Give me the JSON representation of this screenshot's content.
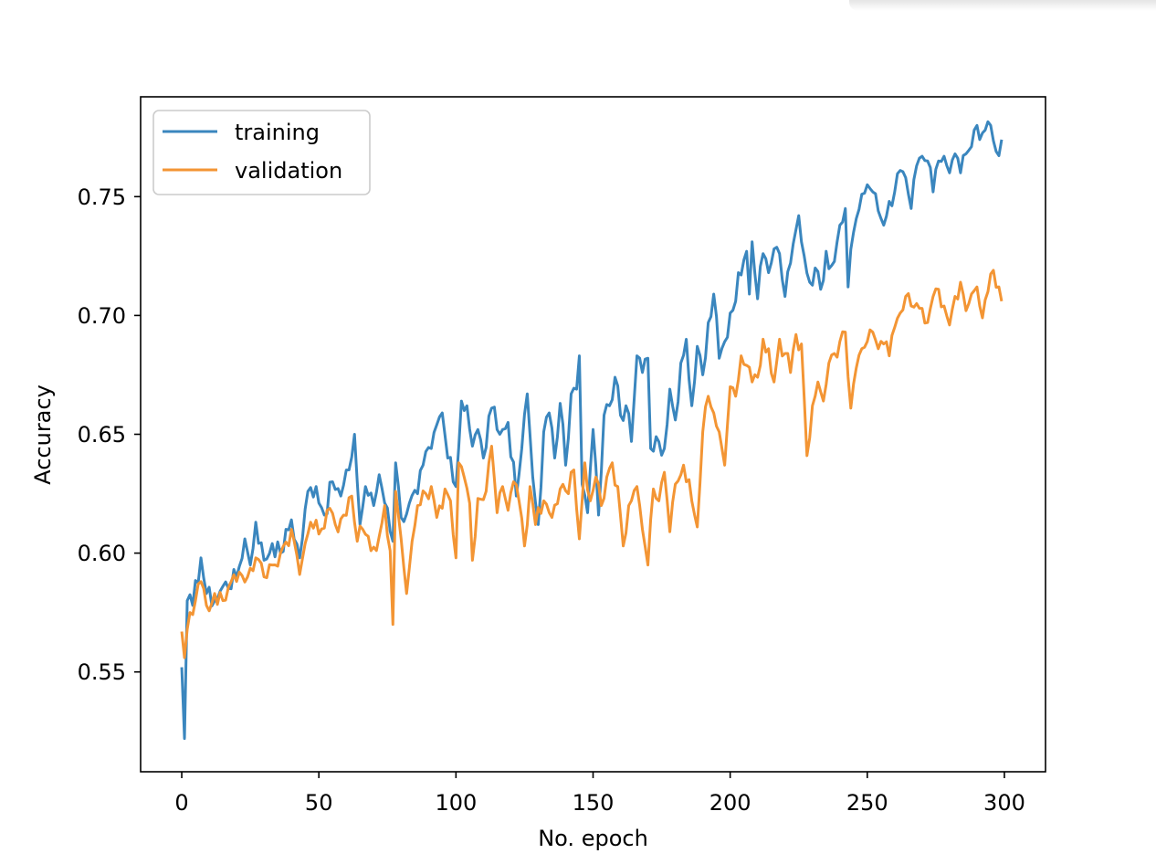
{
  "chart_data": {
    "type": "line",
    "title": "",
    "xlabel": "No. epoch",
    "ylabel": "Accuracy",
    "xlim": [
      -15,
      315
    ],
    "ylim": [
      0.508,
      0.792
    ],
    "xticks": [
      0,
      50,
      100,
      150,
      200,
      250,
      300
    ],
    "xtick_labels": [
      "0",
      "50",
      "100",
      "150",
      "200",
      "250",
      "300"
    ],
    "yticks": [
      0.55,
      0.6,
      0.65,
      0.7,
      0.75
    ],
    "ytick_labels": [
      "0.55",
      "0.60",
      "0.65",
      "0.70",
      "0.75"
    ],
    "grid": false,
    "legend_position": "upper-left",
    "series": [
      {
        "name": "training",
        "color": "#3a86be",
        "keypoints": [
          [
            0,
            0.552
          ],
          [
            1,
            0.522
          ],
          [
            2,
            0.58
          ],
          [
            4,
            0.578
          ],
          [
            7,
            0.598
          ],
          [
            9,
            0.583
          ],
          [
            12,
            0.58
          ],
          [
            15,
            0.586
          ],
          [
            20,
            0.59
          ],
          [
            23,
            0.606
          ],
          [
            25,
            0.595
          ],
          [
            27,
            0.613
          ],
          [
            30,
            0.597
          ],
          [
            33,
            0.604
          ],
          [
            36,
            0.6
          ],
          [
            40,
            0.614
          ],
          [
            43,
            0.598
          ],
          [
            46,
            0.626
          ],
          [
            49,
            0.628
          ],
          [
            52,
            0.616
          ],
          [
            55,
            0.63
          ],
          [
            58,
            0.624
          ],
          [
            61,
            0.635
          ],
          [
            63,
            0.65
          ],
          [
            65,
            0.612
          ],
          [
            67,
            0.628
          ],
          [
            70,
            0.62
          ],
          [
            72,
            0.633
          ],
          [
            75,
            0.619
          ],
          [
            77,
            0.605
          ],
          [
            78,
            0.638
          ],
          [
            80,
            0.615
          ],
          [
            83,
            0.621
          ],
          [
            86,
            0.625
          ],
          [
            88,
            0.637
          ],
          [
            91,
            0.644
          ],
          [
            93,
            0.654
          ],
          [
            95,
            0.659
          ],
          [
            97,
            0.64
          ],
          [
            100,
            0.628
          ],
          [
            102,
            0.664
          ],
          [
            104,
            0.662
          ],
          [
            106,
            0.645
          ],
          [
            108,
            0.652
          ],
          [
            110,
            0.64
          ],
          [
            113,
            0.661
          ],
          [
            116,
            0.65
          ],
          [
            119,
            0.655
          ],
          [
            122,
            0.624
          ],
          [
            124,
            0.644
          ],
          [
            126,
            0.667
          ],
          [
            128,
            0.632
          ],
          [
            130,
            0.612
          ],
          [
            132,
            0.651
          ],
          [
            134,
            0.659
          ],
          [
            136,
            0.64
          ],
          [
            138,
            0.663
          ],
          [
            140,
            0.637
          ],
          [
            142,
            0.667
          ],
          [
            144,
            0.669
          ],
          [
            145,
            0.683
          ],
          [
            146,
            0.629
          ],
          [
            148,
            0.617
          ],
          [
            150,
            0.652
          ],
          [
            152,
            0.616
          ],
          [
            154,
            0.658
          ],
          [
            156,
            0.662
          ],
          [
            158,
            0.674
          ],
          [
            160,
            0.658
          ],
          [
            162,
            0.662
          ],
          [
            164,
            0.647
          ],
          [
            166,
            0.683
          ],
          [
            168,
            0.676
          ],
          [
            170,
            0.682
          ],
          [
            171,
            0.644
          ],
          [
            173,
            0.649
          ],
          [
            176,
            0.644
          ],
          [
            178,
            0.669
          ],
          [
            180,
            0.656
          ],
          [
            182,
            0.68
          ],
          [
            184,
            0.69
          ],
          [
            186,
            0.662
          ],
          [
            188,
            0.687
          ],
          [
            190,
            0.675
          ],
          [
            192,
            0.697
          ],
          [
            194,
            0.709
          ],
          [
            196,
            0.682
          ],
          [
            198,
            0.689
          ],
          [
            200,
            0.701
          ],
          [
            202,
            0.706
          ],
          [
            203,
            0.718
          ],
          [
            206,
            0.727
          ],
          [
            207,
            0.709
          ],
          [
            208,
            0.731
          ],
          [
            210,
            0.707
          ],
          [
            212,
            0.726
          ],
          [
            214,
            0.718
          ],
          [
            216,
            0.728
          ],
          [
            218,
            0.726
          ],
          [
            220,
            0.708
          ],
          [
            222,
            0.722
          ],
          [
            225,
            0.742
          ],
          [
            227,
            0.725
          ],
          [
            229,
            0.714
          ],
          [
            231,
            0.72
          ],
          [
            233,
            0.711
          ],
          [
            235,
            0.727
          ],
          [
            237,
            0.721
          ],
          [
            239,
            0.731
          ],
          [
            240,
            0.738
          ],
          [
            242,
            0.745
          ],
          [
            243,
            0.712
          ],
          [
            245,
            0.735
          ],
          [
            248,
            0.751
          ],
          [
            250,
            0.755
          ],
          [
            252,
            0.752
          ],
          [
            254,
            0.744
          ],
          [
            256,
            0.738
          ],
          [
            258,
            0.748
          ],
          [
            260,
            0.752
          ],
          [
            262,
            0.761
          ],
          [
            264,
            0.758
          ],
          [
            266,
            0.745
          ],
          [
            268,
            0.763
          ],
          [
            270,
            0.767
          ],
          [
            272,
            0.765
          ],
          [
            274,
            0.752
          ],
          [
            276,
            0.765
          ],
          [
            278,
            0.767
          ],
          [
            280,
            0.76
          ],
          [
            282,
            0.768
          ],
          [
            284,
            0.76
          ],
          [
            286,
            0.768
          ],
          [
            288,
            0.771
          ],
          [
            289,
            0.778
          ],
          [
            291,
            0.774
          ],
          [
            293,
            0.778
          ],
          [
            295,
            0.78
          ],
          [
            297,
            0.769
          ],
          [
            299,
            0.774
          ]
        ]
      },
      {
        "name": "validation",
        "color": "#f39534",
        "keypoints": [
          [
            0,
            0.567
          ],
          [
            1,
            0.556
          ],
          [
            2,
            0.568
          ],
          [
            3,
            0.575
          ],
          [
            5,
            0.58
          ],
          [
            7,
            0.588
          ],
          [
            9,
            0.578
          ],
          [
            12,
            0.583
          ],
          [
            15,
            0.58
          ],
          [
            18,
            0.588
          ],
          [
            21,
            0.592
          ],
          [
            24,
            0.59
          ],
          [
            27,
            0.598
          ],
          [
            30,
            0.59
          ],
          [
            33,
            0.595
          ],
          [
            36,
            0.6
          ],
          [
            40,
            0.61
          ],
          [
            43,
            0.591
          ],
          [
            45,
            0.604
          ],
          [
            47,
            0.613
          ],
          [
            50,
            0.608
          ],
          [
            53,
            0.618
          ],
          [
            56,
            0.612
          ],
          [
            59,
            0.616
          ],
          [
            62,
            0.624
          ],
          [
            64,
            0.605
          ],
          [
            66,
            0.61
          ],
          [
            69,
            0.601
          ],
          [
            72,
            0.607
          ],
          [
            74,
            0.62
          ],
          [
            76,
            0.601
          ],
          [
            77,
            0.57
          ],
          [
            78,
            0.626
          ],
          [
            80,
            0.606
          ],
          [
            82,
            0.583
          ],
          [
            84,
            0.605
          ],
          [
            86,
            0.62
          ],
          [
            89,
            0.625
          ],
          [
            91,
            0.628
          ],
          [
            93,
            0.615
          ],
          [
            96,
            0.627
          ],
          [
            98,
            0.622
          ],
          [
            100,
            0.598
          ],
          [
            101,
            0.638
          ],
          [
            103,
            0.632
          ],
          [
            105,
            0.621
          ],
          [
            106,
            0.597
          ],
          [
            108,
            0.623
          ],
          [
            111,
            0.626
          ],
          [
            113,
            0.645
          ],
          [
            115,
            0.617
          ],
          [
            117,
            0.628
          ],
          [
            119,
            0.618
          ],
          [
            121,
            0.63
          ],
          [
            123,
            0.622
          ],
          [
            125,
            0.603
          ],
          [
            127,
            0.628
          ],
          [
            129,
            0.612
          ],
          [
            132,
            0.622
          ],
          [
            135,
            0.615
          ],
          [
            138,
            0.627
          ],
          [
            141,
            0.625
          ],
          [
            143,
            0.635
          ],
          [
            145,
            0.606
          ],
          [
            147,
            0.638
          ],
          [
            149,
            0.622
          ],
          [
            151,
            0.632
          ],
          [
            153,
            0.62
          ],
          [
            155,
            0.632
          ],
          [
            157,
            0.638
          ],
          [
            159,
            0.628
          ],
          [
            161,
            0.603
          ],
          [
            163,
            0.62
          ],
          [
            166,
            0.628
          ],
          [
            168,
            0.61
          ],
          [
            170,
            0.595
          ],
          [
            172,
            0.627
          ],
          [
            174,
            0.622
          ],
          [
            176,
            0.634
          ],
          [
            178,
            0.609
          ],
          [
            180,
            0.629
          ],
          [
            183,
            0.637
          ],
          [
            186,
            0.622
          ],
          [
            188,
            0.611
          ],
          [
            190,
            0.651
          ],
          [
            192,
            0.666
          ],
          [
            194,
            0.659
          ],
          [
            196,
            0.651
          ],
          [
            198,
            0.637
          ],
          [
            200,
            0.67
          ],
          [
            202,
            0.666
          ],
          [
            204,
            0.683
          ],
          [
            206,
            0.679
          ],
          [
            208,
            0.672
          ],
          [
            210,
            0.674
          ],
          [
            212,
            0.69
          ],
          [
            214,
            0.686
          ],
          [
            216,
            0.672
          ],
          [
            218,
            0.69
          ],
          [
            220,
            0.684
          ],
          [
            222,
            0.676
          ],
          [
            224,
            0.692
          ],
          [
            226,
            0.688
          ],
          [
            228,
            0.641
          ],
          [
            230,
            0.662
          ],
          [
            232,
            0.672
          ],
          [
            234,
            0.664
          ],
          [
            236,
            0.68
          ],
          [
            238,
            0.684
          ],
          [
            240,
            0.689
          ],
          [
            242,
            0.693
          ],
          [
            244,
            0.661
          ],
          [
            246,
            0.678
          ],
          [
            248,
            0.686
          ],
          [
            250,
            0.689
          ],
          [
            252,
            0.693
          ],
          [
            254,
            0.686
          ],
          [
            256,
            0.688
          ],
          [
            258,
            0.683
          ],
          [
            260,
            0.695
          ],
          [
            262,
            0.701
          ],
          [
            264,
            0.708
          ],
          [
            266,
            0.704
          ],
          [
            268,
            0.705
          ],
          [
            270,
            0.703
          ],
          [
            272,
            0.697
          ],
          [
            274,
            0.708
          ],
          [
            276,
            0.711
          ],
          [
            278,
            0.704
          ],
          [
            280,
            0.696
          ],
          [
            282,
            0.708
          ],
          [
            284,
            0.714
          ],
          [
            286,
            0.702
          ],
          [
            288,
            0.709
          ],
          [
            290,
            0.712
          ],
          [
            292,
            0.699
          ],
          [
            294,
            0.71
          ],
          [
            296,
            0.719
          ],
          [
            298,
            0.712
          ],
          [
            299,
            0.706
          ]
        ]
      }
    ]
  }
}
